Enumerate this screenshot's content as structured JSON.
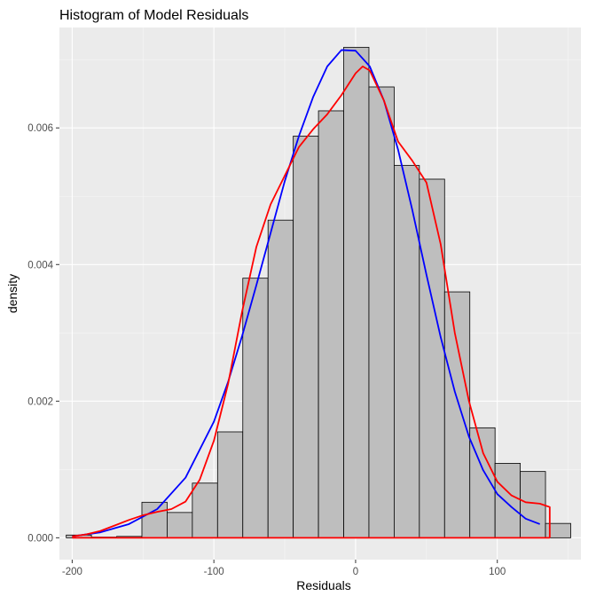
{
  "chart_data": {
    "type": "bar",
    "title": "Histogram of Model Residuals",
    "xlabel": "Residuals",
    "ylabel": "density",
    "xlim": [
      -209,
      159
    ],
    "ylim": [
      -0.00032,
      0.00747
    ],
    "x_ticks": [
      -200,
      -100,
      0,
      100
    ],
    "x_tick_labels": [
      "-200",
      "-100",
      "0",
      "100"
    ],
    "y_ticks": [
      0,
      0.002,
      0.004,
      0.006
    ],
    "y_tick_labels": [
      "0.000",
      "0.002",
      "0.004",
      "0.006"
    ],
    "grid": true,
    "bin_width": 17.8,
    "bins": [
      {
        "x0": -204.2,
        "density": 4e-05
      },
      {
        "x0": -186.4,
        "density": 1e-05
      },
      {
        "x0": -168.6,
        "density": 2e-05
      },
      {
        "x0": -150.8,
        "density": 0.00052
      },
      {
        "x0": -133.0,
        "density": 0.00037
      },
      {
        "x0": -115.2,
        "density": 0.0008
      },
      {
        "x0": -97.4,
        "density": 0.00155
      },
      {
        "x0": -79.6,
        "density": 0.0038
      },
      {
        "x0": -61.8,
        "density": 0.00465
      },
      {
        "x0": -44.0,
        "density": 0.00588
      },
      {
        "x0": -26.2,
        "density": 0.00625
      },
      {
        "x0": -8.4,
        "density": 0.00718
      },
      {
        "x0": 9.4,
        "density": 0.0066
      },
      {
        "x0": 27.2,
        "density": 0.00545
      },
      {
        "x0": 45.0,
        "density": 0.00525
      },
      {
        "x0": 62.8,
        "density": 0.0036
      },
      {
        "x0": 80.6,
        "density": 0.00161
      },
      {
        "x0": 98.4,
        "density": 0.00109
      },
      {
        "x0": 116.2,
        "density": 0.00097
      },
      {
        "x0": 134.0,
        "density": 0.00021
      }
    ],
    "series": [
      {
        "type": "line",
        "color": "#0000ff",
        "x": [
          -200,
          -180,
          -160,
          -140,
          -120,
          -100,
          -90,
          -80,
          -70,
          -60,
          -50,
          -40,
          -30,
          -20,
          -10,
          0,
          10,
          20,
          30,
          40,
          50,
          60,
          70,
          80,
          90,
          100,
          110,
          120,
          130
        ],
        "y": [
          2e-05,
          8e-05,
          0.0002,
          0.00042,
          0.00088,
          0.0017,
          0.00228,
          0.00296,
          0.0037,
          0.00446,
          0.00522,
          0.00588,
          0.00645,
          0.0069,
          0.00714,
          0.00713,
          0.0069,
          0.0064,
          0.00568,
          0.0048,
          0.00385,
          0.00294,
          0.00214,
          0.00148,
          0.00099,
          0.00064,
          0.00045,
          0.00028,
          0.0002
        ]
      },
      {
        "type": "line",
        "color": "#ff0000",
        "x": [
          -200,
          -190,
          -180,
          -170,
          -160,
          -150,
          -140,
          -130,
          -120,
          -110,
          -100,
          -90,
          -80,
          -70,
          -60,
          -50,
          -40,
          -30,
          -20,
          -10,
          0,
          5,
          10,
          20,
          30,
          40,
          50,
          60,
          70,
          80,
          90,
          100,
          110,
          120,
          130,
          137,
          137
        ],
        "y": [
          2e-05,
          5e-05,
          0.0001,
          0.00018,
          0.00026,
          0.00033,
          0.00038,
          0.00042,
          0.00053,
          0.00085,
          0.00142,
          0.00225,
          0.00332,
          0.00426,
          0.00488,
          0.0053,
          0.00572,
          0.00598,
          0.0062,
          0.00648,
          0.0068,
          0.0069,
          0.00684,
          0.0064,
          0.0058,
          0.00552,
          0.0052,
          0.0043,
          0.003,
          0.002,
          0.00124,
          0.00082,
          0.00062,
          0.00052,
          0.0005,
          0.00045,
          0.0
        ]
      }
    ],
    "baseline": {
      "color": "#ff0000",
      "x": [
        -200,
        137
      ],
      "y": [
        0,
        0
      ]
    }
  }
}
